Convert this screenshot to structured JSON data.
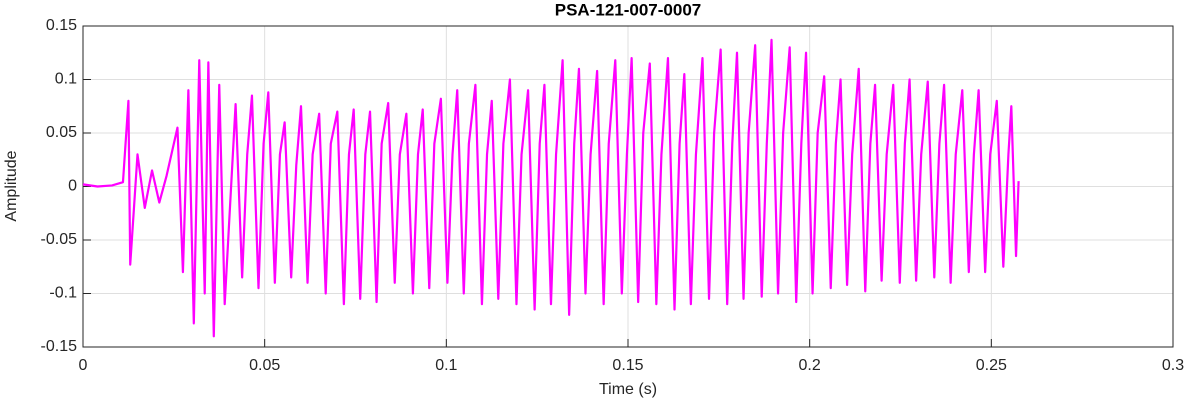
{
  "chart_data": {
    "type": "line",
    "title": "PSA-121-007-0007",
    "xlabel": "Time (s)",
    "ylabel": "Amplitude",
    "x": [
      0,
      0.004,
      0.008,
      0.011,
      0.0125,
      0.013,
      0.015,
      0.017,
      0.019,
      0.021,
      0.023,
      0.026,
      0.0275,
      0.029,
      0.0305,
      0.032,
      0.0335,
      0.0345,
      0.036,
      0.0375,
      0.039,
      0.042,
      0.0438,
      0.0452,
      0.0465,
      0.0483,
      0.0497,
      0.051,
      0.0528,
      0.0542,
      0.0555,
      0.0573,
      0.0587,
      0.06,
      0.0618,
      0.0632,
      0.065,
      0.0668,
      0.0682,
      0.07,
      0.0718,
      0.0732,
      0.0745,
      0.0763,
      0.0777,
      0.079,
      0.0808,
      0.0822,
      0.084,
      0.0858,
      0.0872,
      0.089,
      0.0908,
      0.0922,
      0.0935,
      0.0953,
      0.0967,
      0.0985,
      0.1003,
      0.1017,
      0.103,
      0.1048,
      0.1062,
      0.108,
      0.1098,
      0.1112,
      0.1125,
      0.1143,
      0.1157,
      0.1175,
      0.1193,
      0.1207,
      0.1225,
      0.1243,
      0.1257,
      0.127,
      0.1288,
      0.1302,
      0.132,
      0.1338,
      0.1352,
      0.1365,
      0.1383,
      0.1397,
      0.1415,
      0.1433,
      0.1447,
      0.1465,
      0.1483,
      0.1497,
      0.151,
      0.1528,
      0.1542,
      0.156,
      0.1578,
      0.1592,
      0.161,
      0.1628,
      0.1642,
      0.1655,
      0.1673,
      0.1687,
      0.1705,
      0.1723,
      0.1737,
      0.1755,
      0.1773,
      0.1787,
      0.18,
      0.1818,
      0.1832,
      0.185,
      0.1868,
      0.1882,
      0.1895,
      0.1913,
      0.1927,
      0.1945,
      0.1963,
      0.1977,
      0.199,
      0.2008,
      0.2022,
      0.204,
      0.2058,
      0.2072,
      0.2085,
      0.2103,
      0.2117,
      0.2135,
      0.2153,
      0.2167,
      0.218,
      0.2198,
      0.2212,
      0.223,
      0.2248,
      0.2262,
      0.2275,
      0.2293,
      0.2307,
      0.2325,
      0.2343,
      0.2357,
      0.237,
      0.2388,
      0.2402,
      0.242,
      0.2438,
      0.2452,
      0.2465,
      0.2483,
      0.2497,
      0.2515,
      0.2533,
      0.2547,
      0.2555,
      0.2568,
      0.2575
    ],
    "series": [
      {
        "name": "Amplitude",
        "color": "#ff00ff",
        "values": [
          0.002,
          0,
          0.001,
          0.004,
          0.08,
          -0.073,
          0.03,
          -0.02,
          0.015,
          -0.015,
          0.01,
          0.055,
          -0.08,
          0.09,
          -0.128,
          0.118,
          -0.1,
          0.116,
          -0.14,
          0.095,
          -0.11,
          0.077,
          -0.085,
          0.03,
          0.085,
          -0.095,
          0.04,
          0.088,
          -0.09,
          0.03,
          0.06,
          -0.085,
          0.02,
          0.075,
          -0.09,
          0.03,
          0.068,
          -0.1,
          0.04,
          0.07,
          -0.11,
          0.03,
          0.072,
          -0.105,
          0.03,
          0.07,
          -0.108,
          0.04,
          0.078,
          -0.09,
          0.03,
          0.068,
          -0.1,
          0.03,
          0.072,
          -0.095,
          0.04,
          0.082,
          -0.09,
          0.03,
          0.09,
          -0.1,
          0.04,
          0.095,
          -0.11,
          0.03,
          0.08,
          -0.105,
          0.04,
          0.1,
          -0.11,
          0.03,
          0.09,
          -0.115,
          0.04,
          0.095,
          -0.11,
          0.03,
          0.118,
          -0.12,
          0.04,
          0.11,
          -0.1,
          0.03,
          0.108,
          -0.11,
          0.04,
          0.118,
          -0.1,
          0.03,
          0.12,
          -0.108,
          0.05,
          0.115,
          -0.11,
          0.03,
          0.12,
          -0.115,
          0.04,
          0.105,
          -0.11,
          0.03,
          0.12,
          -0.105,
          0.05,
          0.128,
          -0.11,
          0.04,
          0.125,
          -0.105,
          0.05,
          0.132,
          -0.103,
          0.04,
          0.137,
          -0.1,
          0.05,
          0.13,
          -0.108,
          0.04,
          0.125,
          -0.1,
          0.05,
          0.103,
          -0.095,
          0.04,
          0.1,
          -0.092,
          0.03,
          0.11,
          -0.098,
          0.04,
          0.095,
          -0.088,
          0.03,
          0.095,
          -0.09,
          0.04,
          0.1,
          -0.088,
          0.03,
          0.098,
          -0.085,
          0.04,
          0.095,
          -0.09,
          0.03,
          0.09,
          -0.08,
          0.03,
          0.09,
          -0.08,
          0.03,
          0.08,
          -0.075,
          0.03,
          0.075,
          -0.065,
          0.005
        ]
      }
    ],
    "xlim": [
      0,
      0.3
    ],
    "xticks": [
      0,
      0.05,
      0.1,
      0.15,
      0.2,
      0.25,
      0.3
    ],
    "ylim": [
      -0.15,
      0.15
    ],
    "yticks": [
      -0.15,
      -0.1,
      -0.05,
      0,
      0.05,
      0.1,
      0.15
    ],
    "grid": true
  }
}
